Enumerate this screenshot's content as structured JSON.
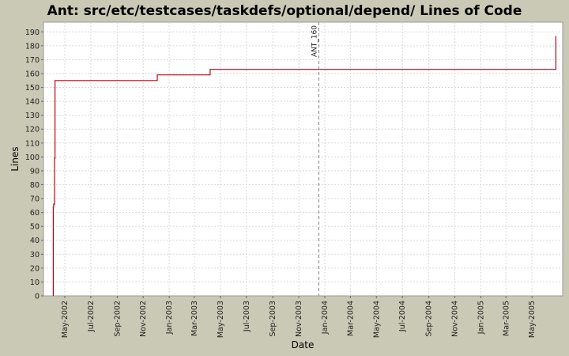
{
  "chart_data": {
    "type": "line",
    "title": "Ant: src/etc/testcases/taskdefs/optional/depend/ Lines of Code",
    "xlabel": "Date",
    "ylabel": "Lines",
    "x_range": [
      "2002-03-12",
      "2005-07-12"
    ],
    "ylim": [
      0,
      197
    ],
    "y_ticks": [
      0,
      10,
      20,
      30,
      40,
      50,
      60,
      70,
      80,
      90,
      100,
      110,
      120,
      130,
      140,
      150,
      160,
      170,
      180,
      190
    ],
    "x_ticks": [
      {
        "date": "2002-05-01",
        "label": "May-2002"
      },
      {
        "date": "2002-07-01",
        "label": "Jul-2002"
      },
      {
        "date": "2002-09-01",
        "label": "Sep-2002"
      },
      {
        "date": "2002-11-01",
        "label": "Nov-2002"
      },
      {
        "date": "2003-01-01",
        "label": "Jan-2003"
      },
      {
        "date": "2003-03-01",
        "label": "Mar-2003"
      },
      {
        "date": "2003-05-01",
        "label": "May-2003"
      },
      {
        "date": "2003-07-01",
        "label": "Jul-2003"
      },
      {
        "date": "2003-09-01",
        "label": "Sep-2003"
      },
      {
        "date": "2003-11-01",
        "label": "Nov-2003"
      },
      {
        "date": "2004-01-01",
        "label": "Jan-2004"
      },
      {
        "date": "2004-03-01",
        "label": "Mar-2004"
      },
      {
        "date": "2004-05-01",
        "label": "May-2004"
      },
      {
        "date": "2004-07-01",
        "label": "Jul-2004"
      },
      {
        "date": "2004-09-01",
        "label": "Sep-2004"
      },
      {
        "date": "2004-11-01",
        "label": "Nov-2004"
      },
      {
        "date": "2005-01-01",
        "label": "Jan-2005"
      },
      {
        "date": "2005-03-01",
        "label": "Mar-2005"
      },
      {
        "date": "2005-05-01",
        "label": "May-2005"
      }
    ],
    "series": [
      {
        "color": "#c0000d",
        "step": true,
        "points": [
          {
            "x": "2002-04-04",
            "y": 0
          },
          {
            "x": "2002-04-04",
            "y": 64
          },
          {
            "x": "2002-04-05",
            "y": 66
          },
          {
            "x": "2002-04-07",
            "y": 99
          },
          {
            "x": "2002-04-08",
            "y": 155
          },
          {
            "x": "2002-12-04",
            "y": 155
          },
          {
            "x": "2002-12-04",
            "y": 159
          },
          {
            "x": "2003-04-07",
            "y": 159
          },
          {
            "x": "2003-04-07",
            "y": 163
          },
          {
            "x": "2005-06-26",
            "y": 163
          },
          {
            "x": "2005-06-26",
            "y": 187
          }
        ]
      }
    ],
    "markers": [
      {
        "date": "2003-12-18",
        "label": "ANT_160"
      }
    ],
    "grid": true,
    "colors": {
      "background": "#c9c9b5",
      "plot_background": "#ffffff",
      "grid": "#d9d9d9",
      "marker": "#808080"
    }
  }
}
